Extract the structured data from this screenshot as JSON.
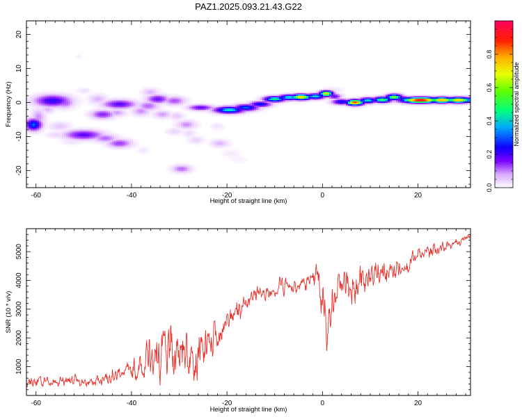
{
  "title": "PAZ1.2025.093.21.43.G22",
  "chart_data": [
    {
      "type": "heatmap",
      "xlabel": "Height of straight line (km)",
      "ylabel": "Frequency (Hz)",
      "xlim": [
        -62,
        31
      ],
      "ylim": [
        -25,
        24
      ],
      "xticks": [
        -60,
        -40,
        -20,
        0,
        20
      ],
      "xtick_labels": [
        "-60",
        "-40",
        "-20",
        "0",
        "20"
      ],
      "yticks": [
        -20,
        -10,
        0,
        10,
        20
      ],
      "ytick_labels": [
        "-20",
        "-10",
        "0",
        "10",
        "20"
      ],
      "colorbar": {
        "label": "Normalized spectral amplitude",
        "range": [
          0,
          1
        ],
        "ticks": [
          0,
          0.2,
          0.4,
          0.6,
          0.8
        ],
        "tick_labels": [
          "0.0",
          "0.2",
          "0.4",
          "0.6",
          "0.8"
        ],
        "colormap": [
          "#ffffff",
          "#e8c8ff",
          "#b04cff",
          "#5a00ff",
          "#0010ff",
          "#00c8ff",
          "#00ff64",
          "#b4ff00",
          "#ffd000",
          "#ff3000",
          "#ff0060"
        ]
      },
      "blobs": [
        {
          "x": -60.5,
          "y": -6.5,
          "sx": 1.2,
          "sy": 1.2,
          "a": 0.45
        },
        {
          "x": -59.5,
          "y": -4.5,
          "sx": 1.0,
          "sy": 2.0,
          "a": 0.15
        },
        {
          "x": -56.5,
          "y": 0.5,
          "sx": 2.6,
          "sy": 1.2,
          "a": 0.35
        },
        {
          "x": -54.0,
          "y": 0.0,
          "sx": 1.4,
          "sy": 1.2,
          "a": 0.2
        },
        {
          "x": -57.5,
          "y": -2.0,
          "sx": 1.0,
          "sy": 0.8,
          "a": 0.12
        },
        {
          "x": -55.0,
          "y": -7.0,
          "sx": 1.5,
          "sy": 0.9,
          "a": 0.1
        },
        {
          "x": -50.0,
          "y": -9.5,
          "sx": 2.8,
          "sy": 1.0,
          "a": 0.3
        },
        {
          "x": -45.5,
          "y": -10.5,
          "sx": 1.8,
          "sy": 0.9,
          "a": 0.18
        },
        {
          "x": -42.5,
          "y": -12.0,
          "sx": 1.8,
          "sy": 0.9,
          "a": 0.22
        },
        {
          "x": -55.5,
          "y": -9.5,
          "sx": 1.5,
          "sy": 0.7,
          "a": 0.08
        },
        {
          "x": -52.5,
          "y": -11.5,
          "sx": 1.5,
          "sy": 0.6,
          "a": 0.06
        },
        {
          "x": -50.0,
          "y": 3.5,
          "sx": 1.0,
          "sy": 0.6,
          "a": 0.06
        },
        {
          "x": -47.0,
          "y": 1.0,
          "sx": 1.3,
          "sy": 1.0,
          "a": 0.12
        },
        {
          "x": -46.0,
          "y": -3.5,
          "sx": 1.7,
          "sy": 0.9,
          "a": 0.25
        },
        {
          "x": -43.0,
          "y": -3.0,
          "sx": 1.3,
          "sy": 0.8,
          "a": 0.14
        },
        {
          "x": -42.5,
          "y": -0.5,
          "sx": 2.4,
          "sy": 0.9,
          "a": 0.3
        },
        {
          "x": -38.0,
          "y": -2.5,
          "sx": 1.3,
          "sy": 1.0,
          "a": 0.15
        },
        {
          "x": -36.5,
          "y": -1.0,
          "sx": 1.6,
          "sy": 1.0,
          "a": 0.18
        },
        {
          "x": -34.5,
          "y": 1.0,
          "sx": 1.6,
          "sy": 0.9,
          "a": 0.28
        },
        {
          "x": -36.0,
          "y": 3.0,
          "sx": 1.2,
          "sy": 0.8,
          "a": 0.12
        },
        {
          "x": -31.0,
          "y": 0.5,
          "sx": 1.6,
          "sy": 0.9,
          "a": 0.2
        },
        {
          "x": -33.5,
          "y": -3.5,
          "sx": 1.3,
          "sy": 0.8,
          "a": 0.14
        },
        {
          "x": -30.5,
          "y": -4.0,
          "sx": 1.0,
          "sy": 0.8,
          "a": 0.1
        },
        {
          "x": -28.5,
          "y": -6.5,
          "sx": 1.4,
          "sy": 0.9,
          "a": 0.15
        },
        {
          "x": -31.0,
          "y": -8.5,
          "sx": 1.2,
          "sy": 0.7,
          "a": 0.08
        },
        {
          "x": -28.0,
          "y": -9.0,
          "sx": 1.0,
          "sy": 0.8,
          "a": 0.07
        },
        {
          "x": -26.5,
          "y": -11.0,
          "sx": 1.2,
          "sy": 0.8,
          "a": 0.08
        },
        {
          "x": -21.5,
          "y": -12.0,
          "sx": 1.3,
          "sy": 0.8,
          "a": 0.12
        },
        {
          "x": -19.0,
          "y": -15.0,
          "sx": 1.5,
          "sy": 0.9,
          "a": 0.04
        },
        {
          "x": -17.5,
          "y": -16.8,
          "sx": 1.3,
          "sy": 0.8,
          "a": 0.03
        },
        {
          "x": -29.5,
          "y": -19.5,
          "sx": 1.4,
          "sy": 0.8,
          "a": 0.18
        },
        {
          "x": -37.5,
          "y": -14.0,
          "sx": 0.8,
          "sy": 0.7,
          "a": 0.05
        },
        {
          "x": -22.0,
          "y": -7.0,
          "sx": 1.0,
          "sy": 0.8,
          "a": 0.05
        },
        {
          "x": -25.5,
          "y": -1.5,
          "sx": 1.8,
          "sy": 0.6,
          "a": 0.3
        },
        {
          "x": -23.5,
          "y": -1.5,
          "sx": 1.0,
          "sy": 0.5,
          "a": 0.15
        },
        {
          "x": -19.5,
          "y": -2.2,
          "sx": 2.2,
          "sy": 0.7,
          "a": 0.55
        },
        {
          "x": -16.0,
          "y": -1.5,
          "sx": 1.8,
          "sy": 0.7,
          "a": 0.45
        },
        {
          "x": -13.0,
          "y": -0.5,
          "sx": 1.6,
          "sy": 0.6,
          "a": 0.4
        },
        {
          "x": -10.0,
          "y": 1.0,
          "sx": 1.6,
          "sy": 0.6,
          "a": 0.6
        },
        {
          "x": -7.0,
          "y": 1.5,
          "sx": 1.6,
          "sy": 0.6,
          "a": 0.55
        },
        {
          "x": -4.5,
          "y": 1.6,
          "sx": 1.6,
          "sy": 0.6,
          "a": 0.8
        },
        {
          "x": -1.5,
          "y": 1.8,
          "sx": 1.4,
          "sy": 0.6,
          "a": 0.55
        },
        {
          "x": 0.8,
          "y": 2.6,
          "sx": 1.0,
          "sy": 0.6,
          "a": 0.8
        },
        {
          "x": 2.5,
          "y": 1.8,
          "sx": 1.0,
          "sy": 0.6,
          "a": 0.3
        },
        {
          "x": 2.0,
          "y": 3.5,
          "sx": 1.5,
          "sy": 0.8,
          "a": 0.06
        },
        {
          "x": 4.0,
          "y": 0.2,
          "sx": 1.4,
          "sy": 0.6,
          "a": 0.4
        },
        {
          "x": 6.8,
          "y": 0.0,
          "sx": 1.3,
          "sy": 0.6,
          "a": 0.92
        },
        {
          "x": 9.5,
          "y": 0.6,
          "sx": 1.3,
          "sy": 0.6,
          "a": 0.55
        },
        {
          "x": 12.5,
          "y": 0.8,
          "sx": 1.4,
          "sy": 0.6,
          "a": 0.65
        },
        {
          "x": 15.0,
          "y": 1.6,
          "sx": 1.2,
          "sy": 0.6,
          "a": 0.7
        },
        {
          "x": 17.0,
          "y": 1.0,
          "sx": 1.0,
          "sy": 0.6,
          "a": 0.45
        },
        {
          "x": 20.5,
          "y": 0.7,
          "sx": 2.8,
          "sy": 0.6,
          "a": 0.98
        },
        {
          "x": 25.0,
          "y": 0.7,
          "sx": 1.8,
          "sy": 0.6,
          "a": 0.85
        },
        {
          "x": 28.5,
          "y": 0.7,
          "sx": 2.0,
          "sy": 0.6,
          "a": 0.8
        },
        {
          "x": 31.0,
          "y": 0.7,
          "sx": 1.2,
          "sy": 0.6,
          "a": 0.5
        },
        {
          "x": -51.0,
          "y": 13.5,
          "sx": 0.5,
          "sy": 0.4,
          "a": 0.04
        }
      ]
    },
    {
      "type": "line",
      "xlabel": "Height of straight line (km)",
      "ylabel": "SNR (10 * v/v)",
      "xlim": [
        -62,
        31
      ],
      "ylim": [
        0,
        5800
      ],
      "xticks": [
        -60,
        -40,
        -20,
        0,
        20
      ],
      "xtick_labels": [
        "-60",
        "-40",
        "-20",
        "0",
        "20"
      ],
      "yticks": [
        1000,
        2000,
        3000,
        4000,
        5000
      ],
      "ytick_labels": [
        "1000",
        "2000",
        "3000",
        "4000",
        "5000"
      ],
      "color": "#e8302a",
      "x": [
        -62,
        -60,
        -58,
        -56,
        -54,
        -52,
        -50,
        -48,
        -46,
        -44,
        -42,
        -40,
        -39,
        -38,
        -36,
        -34,
        -32,
        -30,
        -28,
        -26,
        -24,
        -22,
        -20,
        -18,
        -16,
        -14,
        -12,
        -10,
        -8,
        -6,
        -4,
        -2,
        -1,
        0,
        1,
        2,
        3,
        4,
        6,
        8,
        10,
        12,
        14,
        16,
        18,
        20,
        22,
        24,
        26,
        28,
        30,
        31
      ],
      "y": [
        400,
        500,
        500,
        450,
        550,
        500,
        450,
        450,
        600,
        700,
        800,
        850,
        900,
        1000,
        1300,
        1400,
        1500,
        1600,
        1500,
        1400,
        1700,
        2100,
        2600,
        2900,
        3300,
        3600,
        3500,
        3700,
        3900,
        3800,
        3900,
        4000,
        4100,
        3400,
        2400,
        3100,
        3600,
        3900,
        3800,
        3900,
        4100,
        4200,
        4300,
        4400,
        4600,
        4800,
        5000,
        5100,
        5200,
        5300,
        5500,
        5550
      ],
      "noise": [
        250,
        300,
        300,
        250,
        300,
        300,
        250,
        250,
        300,
        350,
        350,
        400,
        700,
        900,
        1100,
        1200,
        1300,
        1400,
        1300,
        1100,
        1000,
        900,
        700,
        600,
        500,
        450,
        400,
        400,
        450,
        400,
        400,
        500,
        700,
        1200,
        1200,
        900,
        600,
        700,
        900,
        900,
        800,
        700,
        600,
        500,
        450,
        400,
        350,
        300,
        250,
        200,
        200,
        150
      ]
    }
  ]
}
